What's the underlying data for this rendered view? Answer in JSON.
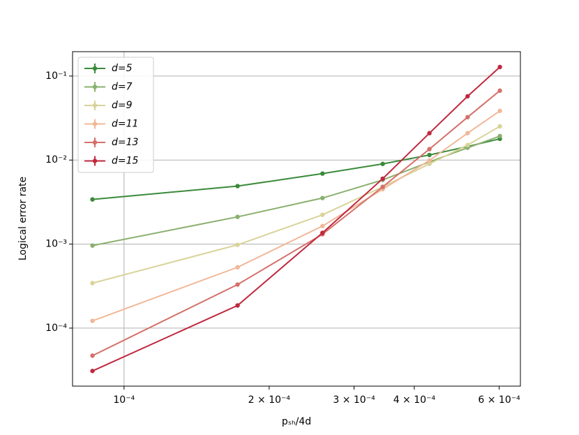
{
  "chart_data": {
    "type": "line",
    "xlabel": "pₛₕ/4d",
    "ylabel": "Logical error rate",
    "x": [
      8.6e-05,
      0.000172,
      0.000258,
      0.000344,
      0.00043,
      0.000516,
      0.000602
    ],
    "series": [
      {
        "name": "d=5",
        "color": "#3a8a3a",
        "values": [
          0.0034,
          0.0049,
          0.0069,
          0.009,
          0.0115,
          0.0145,
          0.0179
        ]
      },
      {
        "name": "d=7",
        "color": "#8ab06e",
        "values": [
          0.00096,
          0.00211,
          0.00353,
          0.0058,
          0.0095,
          0.014,
          0.0193
        ]
      },
      {
        "name": "d=9",
        "color": "#d9d39a",
        "values": [
          0.000343,
          0.00098,
          0.00223,
          0.0048,
          0.009,
          0.0151,
          0.0252
        ]
      },
      {
        "name": "d=11",
        "color": "#f0b898",
        "values": [
          0.000122,
          0.00053,
          0.00164,
          0.0045,
          0.0099,
          0.0209,
          0.0385
        ]
      },
      {
        "name": "d=13",
        "color": "#d4706a",
        "values": [
          4.7e-05,
          0.00033,
          0.00131,
          0.0048,
          0.0135,
          0.0324,
          0.067
        ]
      },
      {
        "name": "d=15",
        "color": "#c0283e",
        "values": [
          3.09e-05,
          0.000186,
          0.00136,
          0.006,
          0.0209,
          0.0574,
          0.128
        ]
      }
    ],
    "xscale": "log",
    "yscale": "log",
    "xlim": [
      7.82e-05,
      0.000664
    ],
    "ylim": [
      2.04e-05,
      0.195
    ],
    "xticks": [
      {
        "value": 0.0001,
        "label": "10⁻⁴"
      },
      {
        "value": 0.0002,
        "label": "2 × 10⁻⁴"
      },
      {
        "value": 0.0003,
        "label": "3 × 10⁻⁴"
      },
      {
        "value": 0.0004,
        "label": "4 × 10⁻⁴"
      },
      {
        "value": 0.0006,
        "label": "6 × 10⁻⁴"
      }
    ],
    "yticks": [
      {
        "value": 0.0001,
        "label": "10⁻⁴"
      },
      {
        "value": 0.001,
        "label": "10⁻³"
      },
      {
        "value": 0.01,
        "label": "10⁻²"
      },
      {
        "value": 0.1,
        "label": "10⁻¹"
      }
    ],
    "xgrid": [
      0.0001
    ],
    "grid": true,
    "legend": "upper left"
  }
}
